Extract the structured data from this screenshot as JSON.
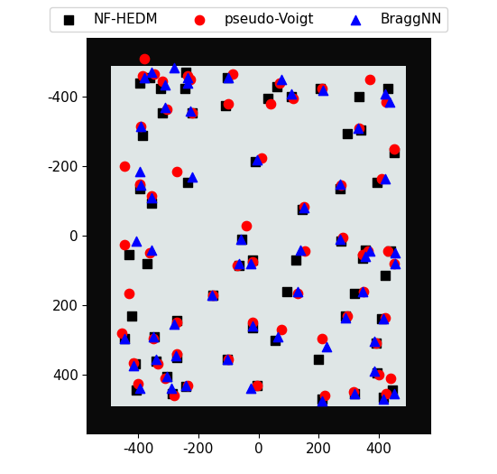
{
  "chart_data": {
    "type": "scatter",
    "xlim": [
      -570,
      570
    ],
    "ylim": [
      570,
      -570
    ],
    "xticks": [
      -400,
      -200,
      0,
      200,
      400
    ],
    "yticks": [
      -400,
      -200,
      0,
      200,
      400
    ],
    "legend": "upper center",
    "series": [
      {
        "name": "NF-HEDM",
        "color": "#000000",
        "marker": "square",
        "x": [
          -395,
          -360,
          -325,
          -240,
          -245,
          -220,
          -320,
          -110,
          -105,
          30,
          60,
          110,
          205,
          335,
          430,
          -385,
          295,
          340,
          450,
          -10,
          -235,
          -395,
          -355,
          145,
          270,
          395,
          355,
          440,
          -55,
          -430,
          -370,
          -65,
          -20,
          125,
          275,
          345,
          420,
          -420,
          -150,
          95,
          320,
          -20,
          55,
          290,
          410,
          -270,
          -445,
          -345,
          -410,
          -340,
          -270,
          -105,
          -5,
          -305,
          -240,
          -405,
          -285,
          200,
          210,
          320,
          390,
          395,
          415,
          445
        ],
        "values": [
          -440,
          -455,
          -425,
          -470,
          -425,
          -355,
          -355,
          -375,
          -455,
          -395,
          -430,
          -400,
          -425,
          -400,
          -425,
          -290,
          -295,
          -305,
          -240,
          -215,
          -155,
          -135,
          -95,
          -75,
          -135,
          -155,
          40,
          45,
          10,
          55,
          80,
          85,
          70,
          70,
          15,
          65,
          115,
          230,
          170,
          160,
          165,
          265,
          300,
          230,
          240,
          245,
          295,
          290,
          370,
          360,
          350,
          355,
          430,
          405,
          435,
          445,
          455,
          355,
          470,
          455,
          310,
          395,
          465,
          445
        ]
      },
      {
        "name": "pseudo-Voigt",
        "color": "#ff0000",
        "marker": "circle",
        "x": [
          -385,
          -345,
          -380,
          -320,
          -235,
          -225,
          -220,
          -305,
          -100,
          -85,
          40,
          70,
          115,
          210,
          425,
          370,
          -390,
          335,
          450,
          10,
          -270,
          -445,
          -395,
          -355,
          150,
          275,
          410,
          365,
          430,
          -40,
          -445,
          -360,
          -70,
          -20,
          155,
          280,
          345,
          450,
          -430,
          -150,
          130,
          350,
          -20,
          75,
          295,
          420,
          -270,
          -455,
          -350,
          -415,
          -335,
          -270,
          -100,
          -5,
          -310,
          -235,
          -400,
          -280,
          210,
          220,
          315,
          390,
          400,
          425,
          440
        ],
        "values": [
          -460,
          -465,
          -510,
          -445,
          -460,
          -450,
          -355,
          -365,
          -380,
          -465,
          -380,
          -440,
          -395,
          -425,
          -385,
          -450,
          -315,
          -310,
          -250,
          -225,
          -185,
          -200,
          -150,
          -115,
          -85,
          -145,
          -165,
          45,
          45,
          -30,
          25,
          50,
          85,
          75,
          45,
          5,
          55,
          80,
          165,
          170,
          165,
          160,
          250,
          270,
          230,
          235,
          250,
          280,
          295,
          365,
          370,
          340,
          355,
          430,
          410,
          430,
          425,
          460,
          295,
          460,
          450,
          310,
          400,
          455,
          410
        ]
      },
      {
        "name": "BraggNN",
        "color": "#0000ff",
        "marker": "triangle",
        "x": [
          -380,
          -355,
          -310,
          -235,
          -280,
          -235,
          -225,
          -310,
          -100,
          75,
          110,
          215,
          435,
          420,
          -390,
          330,
          -5,
          -220,
          -395,
          -390,
          -355,
          150,
          270,
          420,
          370,
          455,
          -60,
          -405,
          -355,
          -65,
          -25,
          140,
          270,
          355,
          455,
          -155,
          130,
          345,
          -20,
          65,
          290,
          415,
          -280,
          -445,
          -350,
          -415,
          -340,
          -275,
          -105,
          -25,
          -305,
          -240,
          -395,
          -290,
          225,
          210,
          320,
          385,
          385,
          415,
          450
        ],
        "values": [
          -455,
          -470,
          -435,
          -455,
          -485,
          -440,
          -360,
          -370,
          -455,
          -450,
          -410,
          -420,
          -385,
          -410,
          -315,
          -310,
          -220,
          -170,
          -185,
          -145,
          -110,
          -80,
          -150,
          -165,
          45,
          50,
          10,
          15,
          40,
          80,
          80,
          40,
          10,
          60,
          80,
          170,
          160,
          160,
          260,
          290,
          235,
          240,
          255,
          295,
          290,
          375,
          355,
          345,
          355,
          440,
          405,
          430,
          440,
          440,
          320,
          475,
          455,
          305,
          390,
          470,
          455
        ]
      }
    ]
  }
}
